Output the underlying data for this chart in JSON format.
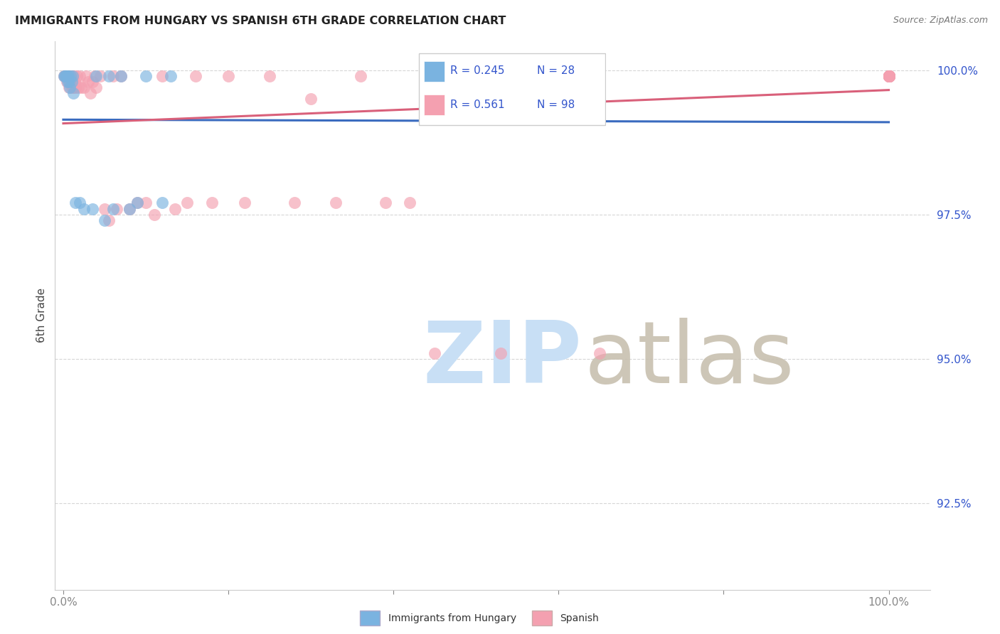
{
  "title": "IMMIGRANTS FROM HUNGARY VS SPANISH 6TH GRADE CORRELATION CHART",
  "source": "Source: ZipAtlas.com",
  "ylabel": "6th Grade",
  "color_hungary": "#7ab3e0",
  "color_spanish": "#f4a0b0",
  "color_line_hungary": "#3a6bbf",
  "color_line_spanish": "#d9607a",
  "color_title": "#222222",
  "color_axis_labels": "#3355cc",
  "color_legend_text": "#3355cc",
  "watermark_zip_color": "#c8dff5",
  "watermark_atlas_color": "#c8c0b0",
  "legend_r1": "R = 0.245",
  "legend_n1": "N = 28",
  "legend_r2": "R = 0.561",
  "legend_n2": "N = 98",
  "xlim": [
    -0.01,
    1.05
  ],
  "ylim": [
    0.91,
    1.005
  ],
  "yticks": [
    0.925,
    0.95,
    0.975,
    1.0
  ],
  "ytick_labels": [
    "92.5%",
    "95.0%",
    "97.5%",
    "100.0%"
  ],
  "xticks": [
    0.0,
    0.2,
    0.4,
    0.6,
    0.8,
    1.0
  ],
  "xtick_labels": [
    "0.0%",
    "",
    "",
    "",
    "",
    "100.0%"
  ],
  "h_x": [
    0.001,
    0.002,
    0.003,
    0.004,
    0.005,
    0.005,
    0.006,
    0.007,
    0.008,
    0.009,
    0.01,
    0.011,
    0.012,
    0.015,
    0.02,
    0.025,
    0.035,
    0.04,
    0.055,
    0.06,
    0.07,
    0.08,
    0.09,
    0.1,
    0.12,
    0.13,
    0.05,
    0.5
  ],
  "h_y": [
    0.999,
    0.999,
    0.999,
    0.999,
    0.999,
    0.998,
    0.999,
    0.998,
    0.997,
    0.999,
    0.998,
    0.999,
    0.996,
    0.977,
    0.977,
    0.976,
    0.976,
    0.999,
    0.999,
    0.976,
    0.999,
    0.976,
    0.977,
    0.999,
    0.977,
    0.999,
    0.974,
    0.999
  ],
  "s_x": [
    0.001,
    0.002,
    0.003,
    0.004,
    0.005,
    0.006,
    0.007,
    0.007,
    0.008,
    0.009,
    0.01,
    0.011,
    0.012,
    0.013,
    0.014,
    0.015,
    0.016,
    0.018,
    0.02,
    0.022,
    0.025,
    0.028,
    0.03,
    0.033,
    0.035,
    0.038,
    0.04,
    0.045,
    0.05,
    0.055,
    0.06,
    0.065,
    0.07,
    0.08,
    0.09,
    0.1,
    0.11,
    0.12,
    0.135,
    0.15,
    0.16,
    0.18,
    0.2,
    0.22,
    0.25,
    0.28,
    0.3,
    0.33,
    0.36,
    0.39,
    0.42,
    0.45,
    0.48,
    0.53,
    0.6,
    0.65,
    1.0,
    1.0,
    1.0,
    1.0,
    1.0,
    1.0,
    1.0,
    1.0,
    1.0,
    1.0,
    1.0,
    1.0,
    1.0,
    1.0,
    1.0,
    1.0,
    1.0,
    1.0,
    1.0,
    1.0,
    1.0,
    1.0,
    1.0,
    1.0,
    1.0,
    1.0,
    1.0,
    1.0,
    1.0,
    1.0,
    1.0,
    1.0,
    1.0,
    1.0,
    1.0,
    1.0,
    1.0,
    1.0
  ],
  "s_y": [
    0.999,
    0.999,
    0.999,
    0.998,
    0.999,
    0.998,
    0.999,
    0.997,
    0.999,
    0.998,
    0.997,
    0.999,
    0.997,
    0.999,
    0.998,
    0.997,
    0.999,
    0.997,
    0.999,
    0.997,
    0.997,
    0.999,
    0.998,
    0.996,
    0.998,
    0.999,
    0.997,
    0.999,
    0.976,
    0.974,
    0.999,
    0.976,
    0.999,
    0.976,
    0.977,
    0.977,
    0.975,
    0.999,
    0.976,
    0.977,
    0.999,
    0.977,
    0.999,
    0.977,
    0.999,
    0.977,
    0.995,
    0.977,
    0.999,
    0.977,
    0.977,
    0.951,
    0.999,
    0.951,
    0.999,
    0.951,
    0.999,
    0.999,
    0.999,
    0.999,
    0.999,
    0.999,
    0.999,
    0.999,
    0.999,
    0.999,
    0.999,
    0.999,
    0.999,
    0.999,
    0.999,
    0.999,
    0.999,
    0.999,
    0.999,
    0.999,
    0.999,
    0.999,
    0.999,
    0.999,
    0.999,
    0.999,
    0.999,
    0.999,
    0.999,
    0.999,
    0.999,
    0.999,
    0.999,
    0.999,
    0.999,
    0.999,
    0.999,
    0.999
  ]
}
